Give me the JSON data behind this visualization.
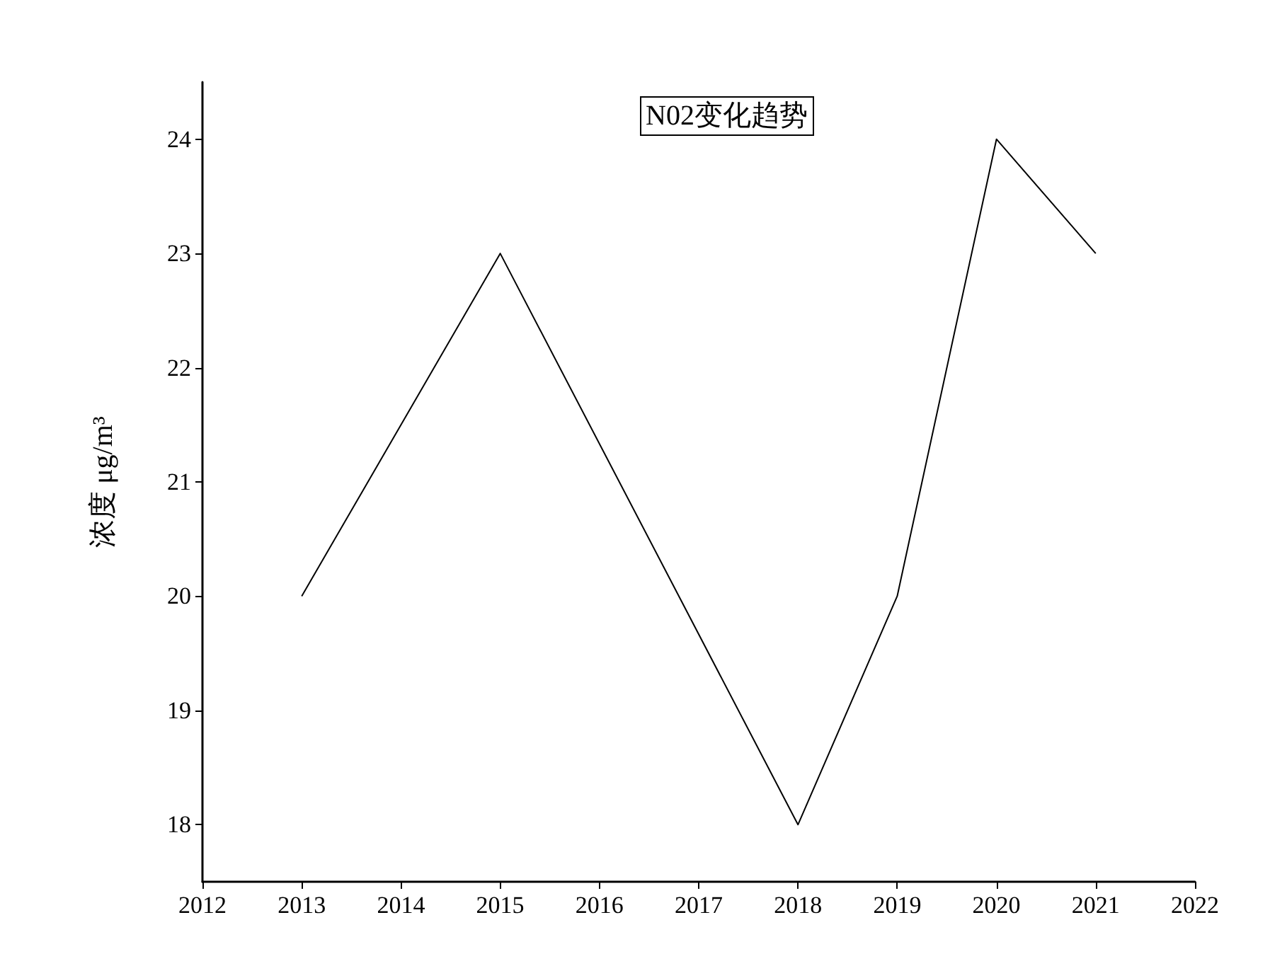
{
  "chart_data": {
    "type": "line",
    "title": "N02变化趋势",
    "ylabel": "浓度 μg/m³",
    "x": [
      2013,
      2015,
      2018,
      2019,
      2020,
      2021
    ],
    "series": [
      {
        "color": "#000000",
        "values": [
          20,
          23,
          18,
          20,
          24,
          23
        ]
      }
    ],
    "xlim": [
      2012,
      2022
    ],
    "xticks": [
      2012,
      2013,
      2014,
      2015,
      2016,
      2017,
      2018,
      2019,
      2020,
      2021,
      2022
    ],
    "ylim": [
      17.5,
      24.5
    ],
    "yticks": [
      18,
      19,
      20,
      21,
      22,
      23,
      24
    ],
    "grid": false,
    "marker": "none",
    "line_style": "solid"
  }
}
